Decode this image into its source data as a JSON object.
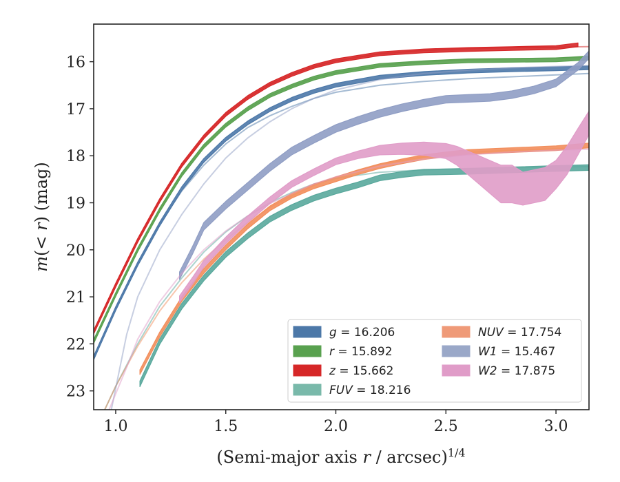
{
  "chart_data": {
    "type": "line",
    "xlabel": "(Semi-major axis r / arcsec)",
    "xlabel_exponent": "1/4",
    "ylabel": "m(< r) (mag)",
    "xlim": [
      0.9,
      3.15
    ],
    "ylim": [
      23.4,
      15.2
    ],
    "y_inverted": true,
    "x_ticks": [
      1.0,
      1.5,
      2.0,
      2.5,
      3.0
    ],
    "x_tick_labels": [
      "1.0",
      "1.5",
      "2.0",
      "2.5",
      "3.0"
    ],
    "y_ticks": [
      16,
      17,
      18,
      19,
      20,
      21,
      22,
      23
    ],
    "y_tick_labels": [
      "16",
      "17",
      "18",
      "19",
      "20",
      "21",
      "22",
      "23"
    ],
    "grid": false,
    "legend_position": "lower-right",
    "legend_columns": 2,
    "series": [
      {
        "name": "g = 16.206",
        "color": "#4c78a8",
        "model": [
          [
            0.9,
            22.3
          ],
          [
            1.0,
            21.25
          ],
          [
            1.1,
            20.3
          ],
          [
            1.2,
            19.45
          ],
          [
            1.3,
            18.75
          ],
          [
            1.4,
            18.2
          ],
          [
            1.5,
            17.75
          ],
          [
            1.6,
            17.4
          ],
          [
            1.7,
            17.15
          ],
          [
            1.8,
            16.95
          ],
          [
            1.9,
            16.78
          ],
          [
            2.0,
            16.65
          ],
          [
            2.2,
            16.5
          ],
          [
            2.4,
            16.42
          ],
          [
            2.6,
            16.36
          ],
          [
            2.8,
            16.32
          ],
          [
            3.0,
            16.28
          ],
          [
            3.15,
            16.25
          ]
        ],
        "measured": [
          [
            0.9,
            22.3
          ],
          [
            1.0,
            21.25
          ],
          [
            1.1,
            20.3
          ],
          [
            1.2,
            19.45
          ],
          [
            1.3,
            18.7
          ],
          [
            1.4,
            18.1
          ],
          [
            1.5,
            17.65
          ],
          [
            1.6,
            17.3
          ],
          [
            1.7,
            17.02
          ],
          [
            1.8,
            16.8
          ],
          [
            1.9,
            16.63
          ],
          [
            2.0,
            16.5
          ],
          [
            2.2,
            16.33
          ],
          [
            2.4,
            16.25
          ],
          [
            2.6,
            16.2
          ],
          [
            2.8,
            16.17
          ],
          [
            3.0,
            16.15
          ],
          [
            3.15,
            16.13
          ]
        ],
        "band_width": 0.04
      },
      {
        "name": "r = 15.892",
        "color": "#59a14f",
        "model": [
          [
            0.9,
            21.95
          ],
          [
            1.0,
            20.95
          ],
          [
            1.1,
            20.0
          ],
          [
            1.2,
            19.15
          ],
          [
            1.3,
            18.4
          ],
          [
            1.4,
            17.8
          ],
          [
            1.5,
            17.35
          ],
          [
            1.6,
            17.0
          ],
          [
            1.7,
            16.72
          ],
          [
            1.8,
            16.52
          ],
          [
            1.9,
            16.35
          ],
          [
            2.0,
            16.23
          ],
          [
            2.2,
            16.08
          ],
          [
            2.4,
            16.0
          ],
          [
            2.6,
            15.96
          ],
          [
            2.8,
            15.94
          ],
          [
            3.0,
            15.92
          ],
          [
            3.15,
            15.9
          ]
        ],
        "measured": [
          [
            0.9,
            21.95
          ],
          [
            1.0,
            20.95
          ],
          [
            1.1,
            20.0
          ],
          [
            1.2,
            19.15
          ],
          [
            1.3,
            18.4
          ],
          [
            1.4,
            17.8
          ],
          [
            1.5,
            17.35
          ],
          [
            1.6,
            17.0
          ],
          [
            1.7,
            16.72
          ],
          [
            1.8,
            16.52
          ],
          [
            1.9,
            16.35
          ],
          [
            2.0,
            16.23
          ],
          [
            2.2,
            16.08
          ],
          [
            2.4,
            16.02
          ],
          [
            2.6,
            15.98
          ],
          [
            2.8,
            15.97
          ],
          [
            3.0,
            15.96
          ],
          [
            3.15,
            15.92
          ]
        ],
        "band_width": 0.04
      },
      {
        "name": "z = 15.662",
        "color": "#d62728",
        "model": [
          [
            0.9,
            21.75
          ],
          [
            1.0,
            20.75
          ],
          [
            1.1,
            19.8
          ],
          [
            1.2,
            18.95
          ],
          [
            1.3,
            18.2
          ],
          [
            1.4,
            17.6
          ],
          [
            1.5,
            17.12
          ],
          [
            1.6,
            16.76
          ],
          [
            1.7,
            16.48
          ],
          [
            1.8,
            16.27
          ],
          [
            1.9,
            16.1
          ],
          [
            2.0,
            15.98
          ],
          [
            2.2,
            15.83
          ],
          [
            2.4,
            15.76
          ],
          [
            2.6,
            15.72
          ],
          [
            2.8,
            15.7
          ],
          [
            3.0,
            15.69
          ],
          [
            3.15,
            15.68
          ]
        ],
        "measured": [
          [
            0.9,
            21.75
          ],
          [
            1.0,
            20.75
          ],
          [
            1.1,
            19.8
          ],
          [
            1.2,
            18.95
          ],
          [
            1.3,
            18.2
          ],
          [
            1.4,
            17.6
          ],
          [
            1.5,
            17.12
          ],
          [
            1.6,
            16.76
          ],
          [
            1.7,
            16.48
          ],
          [
            1.8,
            16.27
          ],
          [
            1.9,
            16.1
          ],
          [
            2.0,
            15.98
          ],
          [
            2.2,
            15.83
          ],
          [
            2.4,
            15.77
          ],
          [
            2.6,
            15.74
          ],
          [
            2.8,
            15.72
          ],
          [
            3.0,
            15.7
          ],
          [
            3.1,
            15.64
          ]
        ],
        "band_width": 0.04
      },
      {
        "name": "FUV = 18.216",
        "color": "#59a89c",
        "model": [
          [
            0.95,
            23.4
          ],
          [
            1.0,
            22.9
          ],
          [
            1.1,
            22.0
          ],
          [
            1.2,
            21.2
          ],
          [
            1.3,
            20.6
          ],
          [
            1.4,
            20.05
          ],
          [
            1.5,
            19.62
          ],
          [
            1.6,
            19.28
          ],
          [
            1.7,
            19.0
          ],
          [
            1.8,
            18.78
          ],
          [
            1.9,
            18.6
          ],
          [
            2.0,
            18.48
          ],
          [
            2.2,
            18.35
          ],
          [
            2.4,
            18.3
          ],
          [
            2.6,
            18.27
          ],
          [
            2.8,
            18.25
          ],
          [
            3.0,
            18.24
          ],
          [
            3.15,
            18.23
          ]
        ],
        "measured": [
          [
            1.11,
            22.85
          ],
          [
            1.2,
            21.95
          ],
          [
            1.3,
            21.2
          ],
          [
            1.4,
            20.6
          ],
          [
            1.5,
            20.1
          ],
          [
            1.6,
            19.7
          ],
          [
            1.7,
            19.35
          ],
          [
            1.8,
            19.1
          ],
          [
            1.9,
            18.9
          ],
          [
            2.0,
            18.75
          ],
          [
            2.1,
            18.62
          ],
          [
            2.2,
            18.47
          ],
          [
            2.3,
            18.4
          ],
          [
            2.4,
            18.35
          ],
          [
            2.6,
            18.33
          ],
          [
            2.8,
            18.3
          ],
          [
            3.0,
            18.27
          ],
          [
            3.15,
            18.25
          ]
        ],
        "band_width": 0.06
      },
      {
        "name": "NUV = 17.754",
        "color": "#f28e5c",
        "model": [
          [
            0.95,
            23.4
          ],
          [
            1.0,
            22.9
          ],
          [
            1.1,
            22.05
          ],
          [
            1.2,
            21.3
          ],
          [
            1.3,
            20.7
          ],
          [
            1.4,
            20.2
          ],
          [
            1.5,
            19.78
          ],
          [
            1.6,
            19.42
          ],
          [
            1.7,
            19.1
          ],
          [
            1.8,
            18.85
          ],
          [
            1.9,
            18.63
          ],
          [
            2.0,
            18.45
          ],
          [
            2.2,
            18.18
          ],
          [
            2.4,
            18.02
          ],
          [
            2.6,
            17.93
          ],
          [
            2.8,
            17.88
          ],
          [
            3.0,
            17.85
          ],
          [
            3.15,
            17.82
          ]
        ],
        "measured": [
          [
            1.11,
            22.6
          ],
          [
            1.2,
            21.8
          ],
          [
            1.3,
            21.05
          ],
          [
            1.4,
            20.45
          ],
          [
            1.5,
            19.95
          ],
          [
            1.6,
            19.5
          ],
          [
            1.7,
            19.12
          ],
          [
            1.8,
            18.85
          ],
          [
            1.9,
            18.65
          ],
          [
            2.0,
            18.5
          ],
          [
            2.1,
            18.35
          ],
          [
            2.2,
            18.22
          ],
          [
            2.3,
            18.12
          ],
          [
            2.4,
            18.03
          ],
          [
            2.5,
            17.97
          ],
          [
            2.6,
            17.92
          ],
          [
            2.8,
            17.88
          ],
          [
            3.0,
            17.84
          ],
          [
            3.15,
            17.78
          ]
        ],
        "band_width": 0.05
      },
      {
        "name": "W1 = 15.467",
        "color": "#8f9dc4",
        "model": [
          [
            0.98,
            23.4
          ],
          [
            1.05,
            21.8
          ],
          [
            1.1,
            21.0
          ],
          [
            1.2,
            20.0
          ],
          [
            1.3,
            19.25
          ],
          [
            1.4,
            18.6
          ],
          [
            1.5,
            18.05
          ],
          [
            1.6,
            17.62
          ],
          [
            1.7,
            17.28
          ],
          [
            1.8,
            17.0
          ],
          [
            1.9,
            16.78
          ],
          [
            2.0,
            16.6
          ],
          [
            2.2,
            16.38
          ],
          [
            2.4,
            16.25
          ],
          [
            2.6,
            16.18
          ],
          [
            2.8,
            16.13
          ],
          [
            3.0,
            16.1
          ],
          [
            3.15,
            16.08
          ]
        ],
        "measured": [
          [
            1.29,
            20.55
          ],
          [
            1.35,
            20.0
          ],
          [
            1.4,
            19.5
          ],
          [
            1.5,
            19.05
          ],
          [
            1.6,
            18.65
          ],
          [
            1.7,
            18.25
          ],
          [
            1.8,
            17.9
          ],
          [
            1.9,
            17.65
          ],
          [
            2.0,
            17.42
          ],
          [
            2.1,
            17.25
          ],
          [
            2.2,
            17.1
          ],
          [
            2.3,
            16.98
          ],
          [
            2.4,
            16.88
          ],
          [
            2.5,
            16.8
          ],
          [
            2.6,
            16.78
          ],
          [
            2.7,
            16.76
          ],
          [
            2.8,
            16.7
          ],
          [
            2.9,
            16.6
          ],
          [
            3.0,
            16.45
          ],
          [
            3.1,
            16.1
          ],
          [
            3.15,
            15.85
          ]
        ],
        "band_width": 0.08
      },
      {
        "name": "W2 = 17.875",
        "color": "#e09cc8",
        "model": [
          [
            0.97,
            23.4
          ],
          [
            1.05,
            22.5
          ],
          [
            1.1,
            21.9
          ],
          [
            1.2,
            21.1
          ],
          [
            1.3,
            20.5
          ],
          [
            1.4,
            20.0
          ],
          [
            1.5,
            19.6
          ],
          [
            1.6,
            19.28
          ],
          [
            1.7,
            19.02
          ],
          [
            1.8,
            18.8
          ],
          [
            1.9,
            18.6
          ],
          [
            2.0,
            18.45
          ],
          [
            2.2,
            18.22
          ],
          [
            2.4,
            18.07
          ],
          [
            2.6,
            17.98
          ],
          [
            2.8,
            17.92
          ],
          [
            3.0,
            17.88
          ],
          [
            3.15,
            17.86
          ]
        ],
        "measured": [
          [
            1.29,
            21.05
          ],
          [
            1.35,
            20.65
          ],
          [
            1.4,
            20.3
          ],
          [
            1.5,
            19.8
          ],
          [
            1.6,
            19.35
          ],
          [
            1.7,
            18.95
          ],
          [
            1.8,
            18.6
          ],
          [
            1.9,
            18.35
          ],
          [
            2.0,
            18.12
          ],
          [
            2.1,
            17.98
          ],
          [
            2.2,
            17.88
          ],
          [
            2.3,
            17.85
          ],
          [
            2.4,
            17.85
          ],
          [
            2.5,
            17.9
          ],
          [
            2.55,
            18.0
          ],
          [
            2.6,
            18.15
          ],
          [
            2.65,
            18.3
          ],
          [
            2.7,
            18.45
          ],
          [
            2.75,
            18.6
          ],
          [
            2.8,
            18.6
          ],
          [
            2.85,
            18.7
          ],
          [
            2.9,
            18.65
          ],
          [
            2.95,
            18.6
          ],
          [
            3.0,
            18.4
          ],
          [
            3.05,
            18.1
          ],
          [
            3.1,
            17.7
          ],
          [
            3.15,
            17.3
          ]
        ],
        "band_width": [
          0.07,
          0.07,
          0.07,
          0.07,
          0.07,
          0.07,
          0.07,
          0.07,
          0.07,
          0.08,
          0.1,
          0.12,
          0.14,
          0.16,
          0.2,
          0.25,
          0.3,
          0.35,
          0.4,
          0.4,
          0.35,
          0.35,
          0.35,
          0.3,
          0.3,
          0.28,
          0.25
        ]
      }
    ],
    "legend": [
      {
        "var": "g",
        "value": "16.206",
        "color": "#4c78a8",
        "col": 0,
        "row": 0
      },
      {
        "var": "r",
        "value": "15.892",
        "color": "#59a14f",
        "col": 0,
        "row": 1
      },
      {
        "var": "z",
        "value": "15.662",
        "color": "#d62728",
        "col": 0,
        "row": 2
      },
      {
        "var": "FUV",
        "value": "18.216",
        "color": "#79b9aa",
        "col": 0,
        "row": 3
      },
      {
        "var": "NUV",
        "value": "17.754",
        "color": "#ef9a78",
        "col": 1,
        "row": 0
      },
      {
        "var": "W1",
        "value": "15.467",
        "color": "#9aa8c8",
        "col": 1,
        "row": 1
      },
      {
        "var": "W2",
        "value": "17.875",
        "color": "#e09cc8",
        "col": 1,
        "row": 2
      }
    ]
  }
}
